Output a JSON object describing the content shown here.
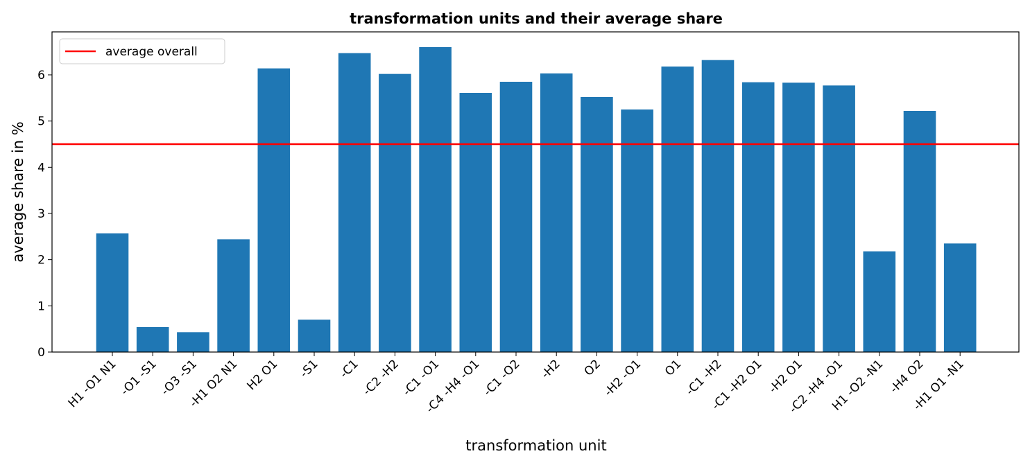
{
  "chart_data": {
    "type": "bar",
    "title": "transformation units and their average share",
    "xlabel": "transformation unit",
    "ylabel": "average share in %",
    "categories": [
      "H1 -O1 N1",
      "-O1 -S1",
      "-O3 -S1",
      "-H1 O2 N1",
      "H2 O1",
      "-S1",
      "-C1",
      "-C2 -H2",
      "-C1 -O1",
      "-C4 -H4 -O1",
      "-C1 -O2",
      "-H2",
      "O2",
      "-H2 -O1",
      "O1",
      "-C1 -H2",
      "-C1 -H2 O1",
      "-H2 O1",
      "-C2 -H4 -O1",
      "H1 -O2 -N1",
      "-H4 O2",
      "-H1 O1 -N1"
    ],
    "values": [
      2.57,
      0.54,
      0.43,
      2.44,
      6.14,
      0.7,
      6.47,
      6.02,
      6.6,
      5.61,
      5.85,
      6.03,
      5.52,
      5.25,
      6.18,
      6.32,
      5.84,
      5.83,
      5.77,
      2.18,
      5.22,
      2.35
    ],
    "ylim": [
      0,
      6.93
    ],
    "yticks": [
      "0",
      "1",
      "2",
      "3",
      "4",
      "5",
      "6"
    ],
    "bar_color": "#1f77b4",
    "reference_line": {
      "name": "average overall",
      "value": 4.5,
      "color": "#ff0000"
    },
    "legend": {
      "placement": "top-left",
      "entries": [
        "average overall"
      ]
    },
    "grid": false
  }
}
